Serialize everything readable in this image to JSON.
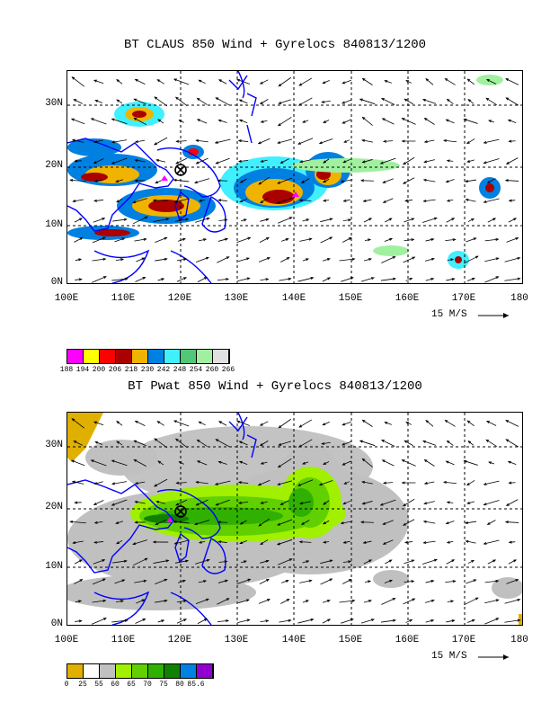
{
  "panel1": {
    "title": "BT CLAUS 850 Wind + Gyrelocs 840813/1200",
    "lat_labels": [
      "30N",
      "20N",
      "10N",
      "0N"
    ],
    "lon_labels": [
      "100E",
      "110E",
      "120E",
      "130E",
      "140E",
      "150E",
      "160E",
      "170E",
      "180"
    ],
    "scale_label": "15 M/S",
    "colorbar": {
      "labels": [
        "188",
        "194",
        "200",
        "206",
        "218",
        "230",
        "242",
        "248",
        "254",
        "260",
        "266"
      ],
      "colors": [
        "#ff00ff",
        "#ffff00",
        "#ff0000",
        "#aa0000",
        "#f0b400",
        "#0080e0",
        "#40f0ff",
        "#50c878",
        "#a0f0a0",
        "#e0e0e0"
      ]
    }
  },
  "panel2": {
    "title": "BT Pwat 850 Wind + Gyrelocs 840813/1200",
    "lat_labels": [
      "30N",
      "20N",
      "10N",
      "0N"
    ],
    "lon_labels": [
      "100E",
      "110E",
      "120E",
      "130E",
      "140E",
      "150E",
      "160E",
      "170E",
      "180"
    ],
    "scale_label": "15 M/S",
    "colorbar": {
      "labels": [
        "0",
        "25",
        "55",
        "60",
        "65",
        "70",
        "75",
        "80",
        "85.6"
      ],
      "colors": [
        "#e0b000",
        "#ffffff",
        "#c0c0c0",
        "#a0f000",
        "#60d000",
        "#30b000",
        "#108000",
        "#0080e0",
        "#9000d0"
      ]
    }
  },
  "gyre_marker": {
    "lon": 120,
    "lat": 19,
    "symbol": "circle-x"
  },
  "colors": {
    "coastline": "#0000ff",
    "grid": "#000000"
  }
}
